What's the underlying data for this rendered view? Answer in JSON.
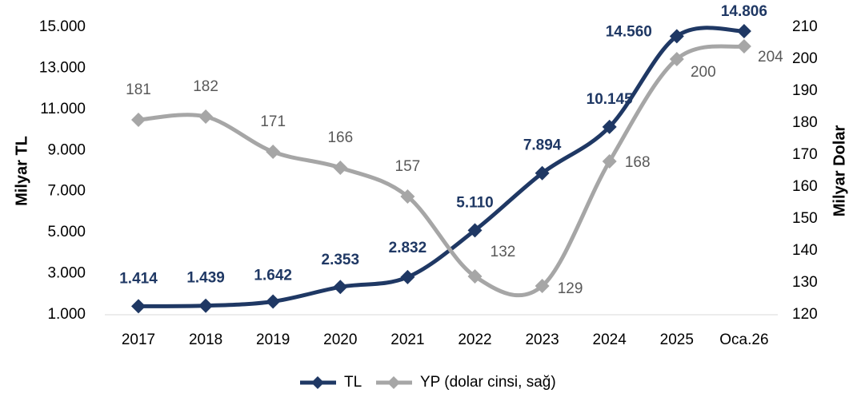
{
  "chart_data": {
    "type": "line",
    "categories": [
      "2017",
      "2018",
      "2019",
      "2020",
      "2021",
      "2022",
      "2023",
      "2024",
      "2025",
      "Oca.26"
    ],
    "ylabel": "Milyar TL",
    "y2label": "Milyar Dolar",
    "ylim": [
      1000,
      15000
    ],
    "yticks": [
      {
        "value": 1000,
        "label": "1.000"
      },
      {
        "value": 3000,
        "label": "3.000"
      },
      {
        "value": 5000,
        "label": "5.000"
      },
      {
        "value": 7000,
        "label": "7.000"
      },
      {
        "value": 9000,
        "label": "9.000"
      },
      {
        "value": 11000,
        "label": "11.000"
      },
      {
        "value": 13000,
        "label": "13.000"
      },
      {
        "value": 15000,
        "label": "15.000"
      }
    ],
    "y2lim": [
      120,
      210
    ],
    "y2ticks": [
      120,
      130,
      140,
      150,
      160,
      170,
      180,
      190,
      200,
      210
    ],
    "legend": "bottom",
    "series": [
      {
        "name": "TL",
        "color": "#1f3864",
        "values": [
          1414,
          1439,
          1642,
          2353,
          2832,
          5110,
          7894,
          10145,
          14560,
          14806
        ],
        "value_labels": [
          "1.414",
          "1.439",
          "1.642",
          "2.353",
          "2.832",
          "5.110",
          "7.894",
          "10.145",
          "14.560",
          "14.806"
        ]
      },
      {
        "name": "YP (dolar cinsi, sağ)",
        "color": "#a6a6a6",
        "axis": "y2",
        "values": [
          181,
          182,
          171,
          166,
          157,
          132,
          129,
          168,
          200,
          204
        ]
      }
    ]
  }
}
